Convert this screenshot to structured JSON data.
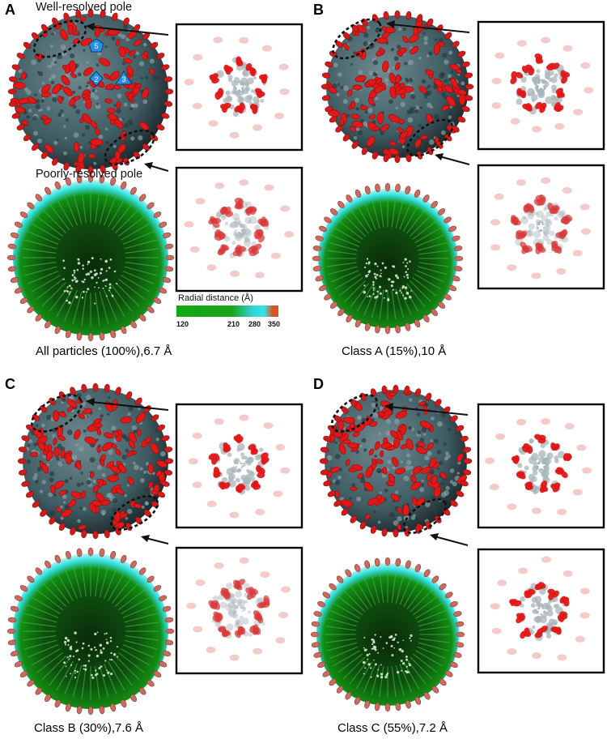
{
  "panels": [
    {
      "letter": "A",
      "caption": "All particles (100%),6.7 Å",
      "annotations": {
        "well_resolved": "Well-resolved pole",
        "poorly_resolved": "Poorly-resolved pole",
        "symmetry_markers": [
          "5",
          "2",
          "3"
        ]
      },
      "colorbar": {
        "title": "Radial distance (Å)",
        "ticks": [
          "120",
          "210",
          "280",
          "350"
        ]
      }
    },
    {
      "letter": "B",
      "caption": "Class A (15%),10 Å"
    },
    {
      "letter": "C",
      "caption": "Class B (30%),7.6 Å"
    },
    {
      "letter": "D",
      "caption": "Class C (55%),7.2 Å"
    }
  ],
  "colors": {
    "spike": "#e01818",
    "capsid_surface": "#3f5c63",
    "inner_green": "#128c12",
    "outer_cyan": "#33e0e0",
    "marker_blue": "#2a8fe8"
  }
}
